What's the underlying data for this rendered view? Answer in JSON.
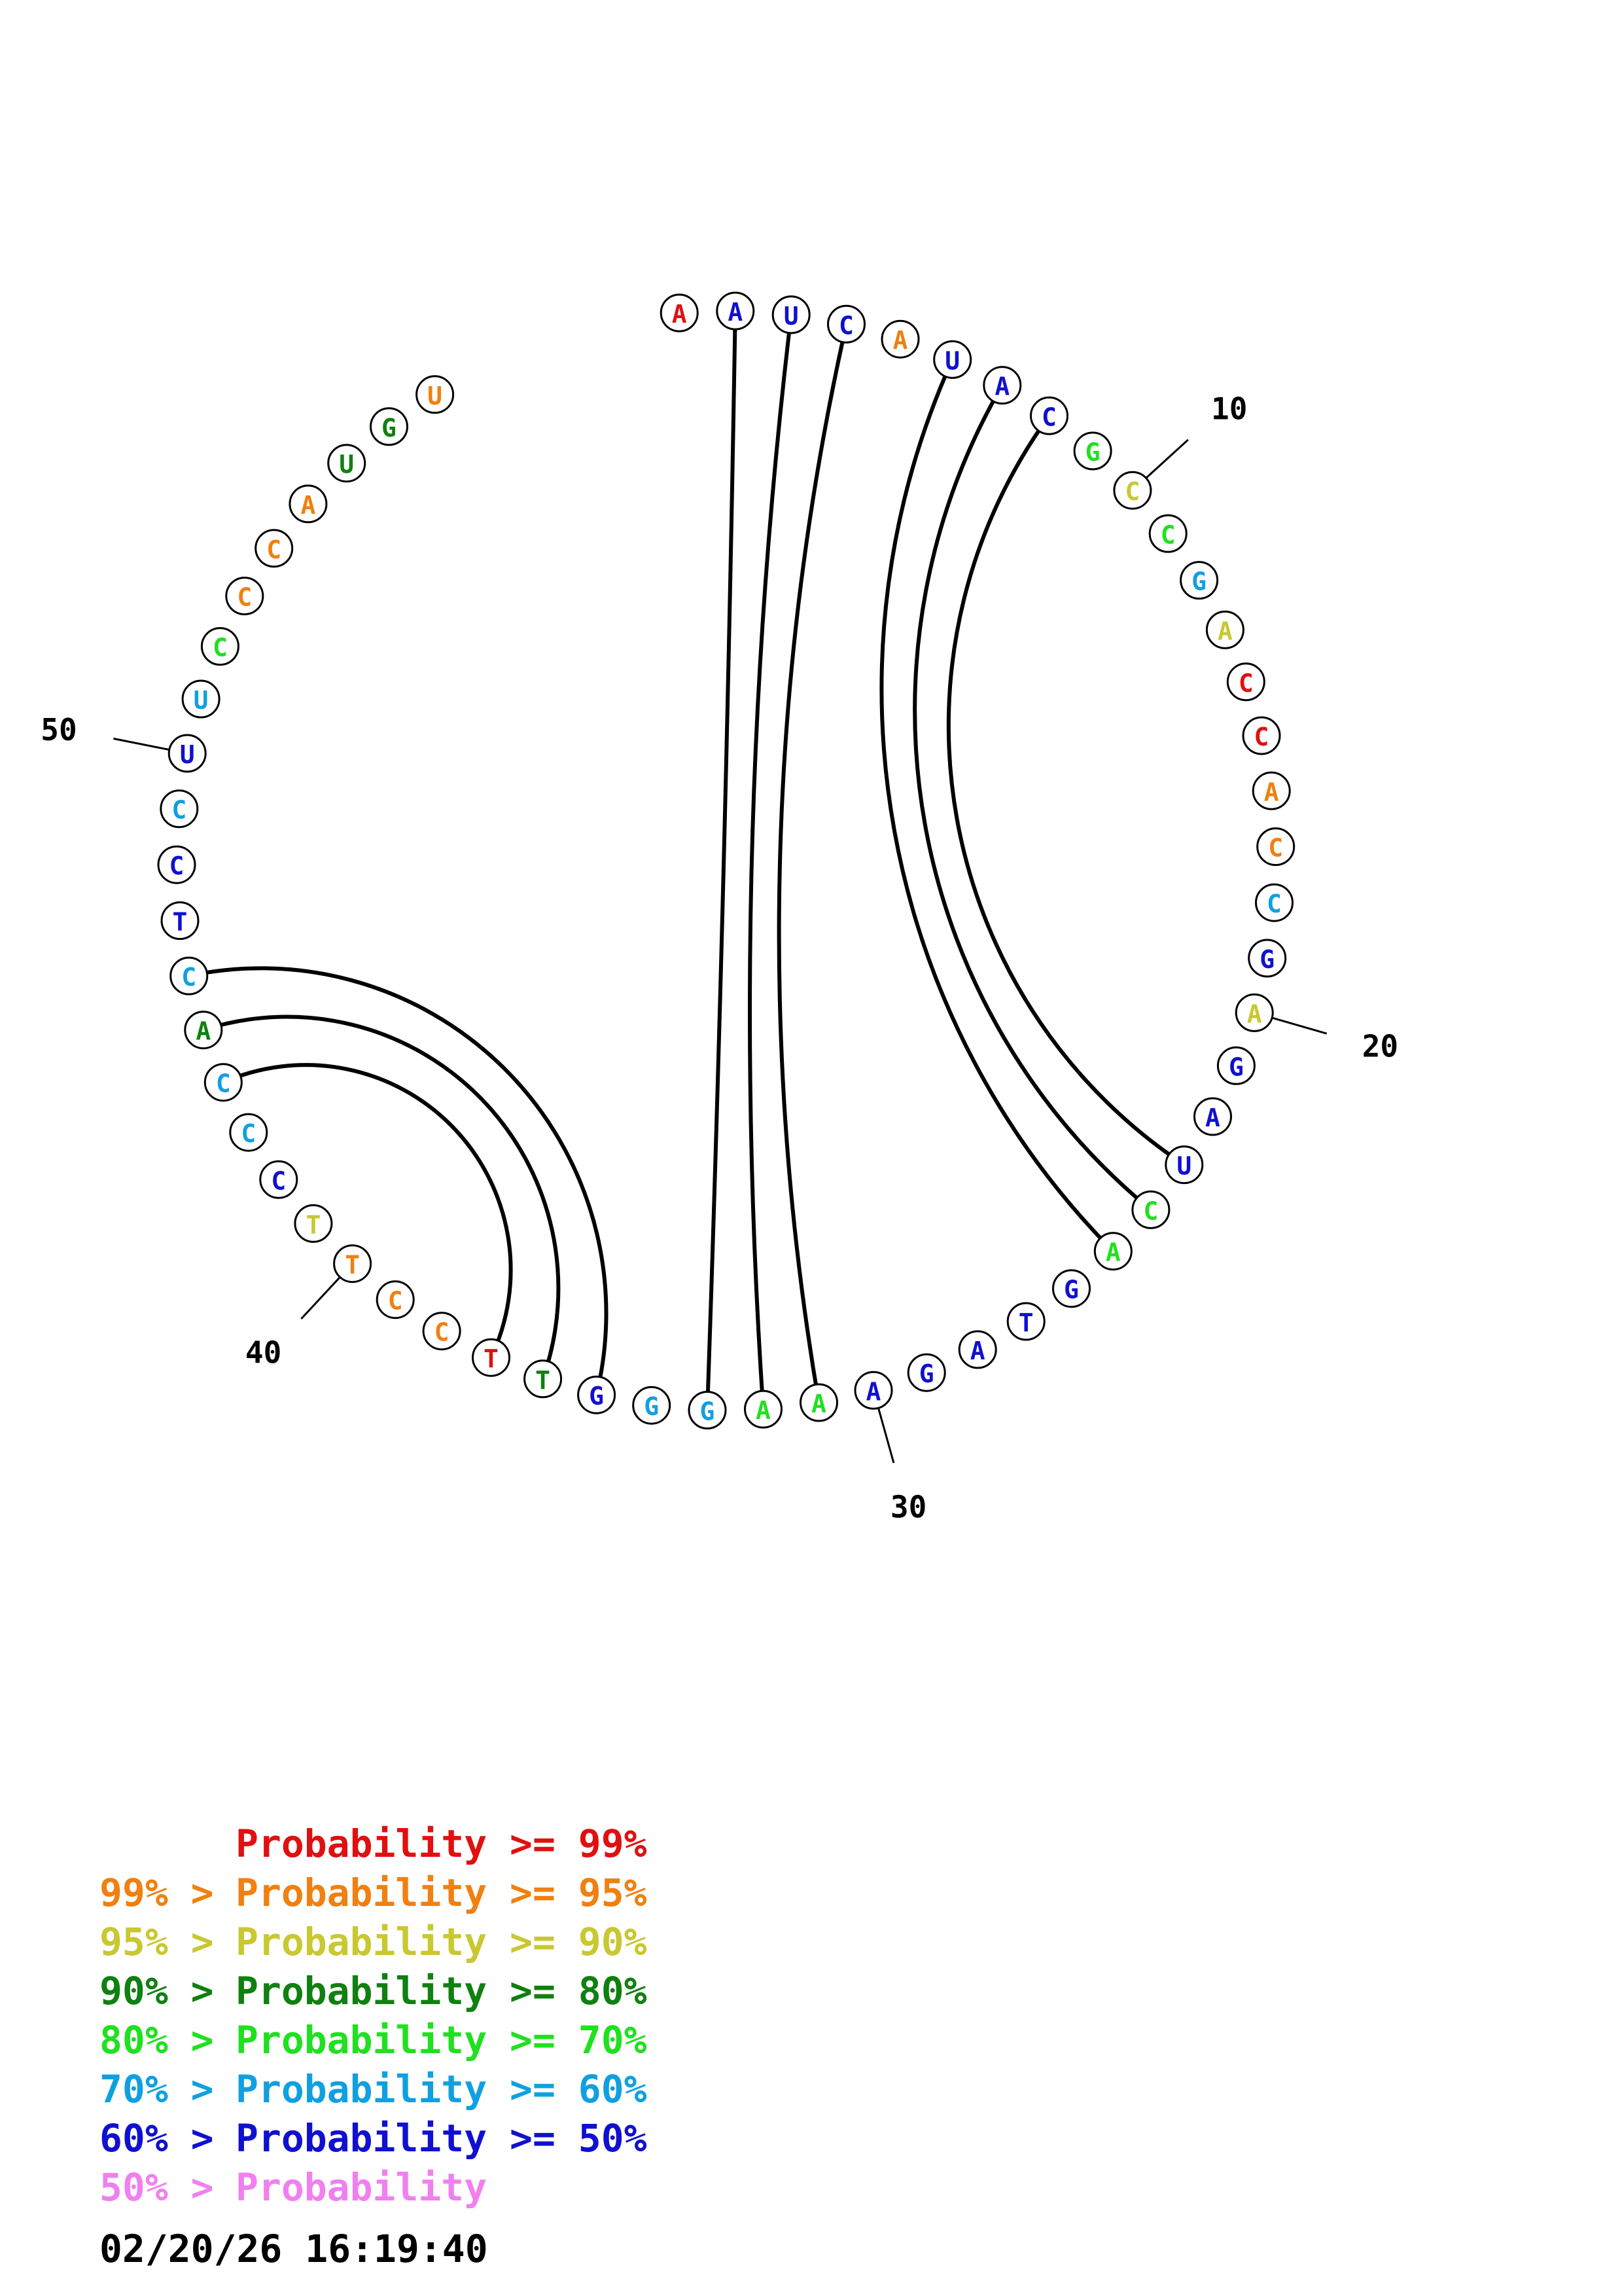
{
  "sequence": [
    "A",
    "A",
    "U",
    "C",
    "A",
    "U",
    "A",
    "C",
    "G",
    "C",
    "C",
    "G",
    "A",
    "C",
    "C",
    "A",
    "C",
    "C",
    "G",
    "A",
    "G",
    "A",
    "U",
    "C",
    "A",
    "G",
    "T",
    "A",
    "G",
    "A",
    "A",
    "A",
    "G",
    "G",
    "G",
    "T",
    "T",
    "C",
    "C",
    "T",
    "T",
    "C",
    "C",
    "C",
    "A",
    "C",
    "T",
    "C",
    "C",
    "U",
    "U",
    "C",
    "C",
    "C",
    "A",
    "U",
    "G",
    "U"
  ],
  "probability_class": [
    0,
    6,
    6,
    6,
    1,
    6,
    6,
    6,
    4,
    2,
    4,
    5,
    2,
    0,
    0,
    1,
    1,
    5,
    6,
    2,
    6,
    6,
    6,
    4,
    4,
    6,
    6,
    6,
    6,
    6,
    4,
    4,
    5,
    5,
    6,
    3,
    0,
    1,
    1,
    1,
    2,
    6,
    5,
    5,
    3,
    5,
    6,
    6,
    5,
    6,
    5,
    4,
    1,
    1,
    1,
    3,
    3,
    1
  ],
  "pairs": [
    [
      2,
      33
    ],
    [
      3,
      32
    ],
    [
      4,
      31
    ],
    [
      6,
      25
    ],
    [
      7,
      24
    ],
    [
      8,
      23
    ],
    [
      35,
      46
    ],
    [
      36,
      45
    ],
    [
      37,
      44
    ]
  ],
  "ticks": [
    {
      "nucleotide": 10,
      "label": "10"
    },
    {
      "nucleotide": 20,
      "label": "20"
    },
    {
      "nucleotide": 30,
      "label": "30"
    },
    {
      "nucleotide": 40,
      "label": "40"
    },
    {
      "nucleotide": 50,
      "label": "50"
    }
  ],
  "colors": [
    "#e01010",
    "#f08010",
    "#c8c830",
    "#108010",
    "#20e020",
    "#10a0e0",
    "#1010d0",
    "#f080f0"
  ],
  "legend": [
    {
      "prefix": "",
      "text": "Probability >= 99%"
    },
    {
      "prefix": "99% > ",
      "text": "Probability >= 95%"
    },
    {
      "prefix": "95% > ",
      "text": "Probability >= 90%"
    },
    {
      "prefix": "90% > ",
      "text": "Probability >= 80%"
    },
    {
      "prefix": "80% > ",
      "text": "Probability >= 70%"
    },
    {
      "prefix": "70% > ",
      "text": "Probability >= 60%"
    },
    {
      "prefix": "60% > ",
      "text": "Probability >= 50%"
    },
    {
      "prefix": "50% > ",
      "text": "Probability"
    }
  ],
  "timestamp": "02/20/26 16:19:40"
}
